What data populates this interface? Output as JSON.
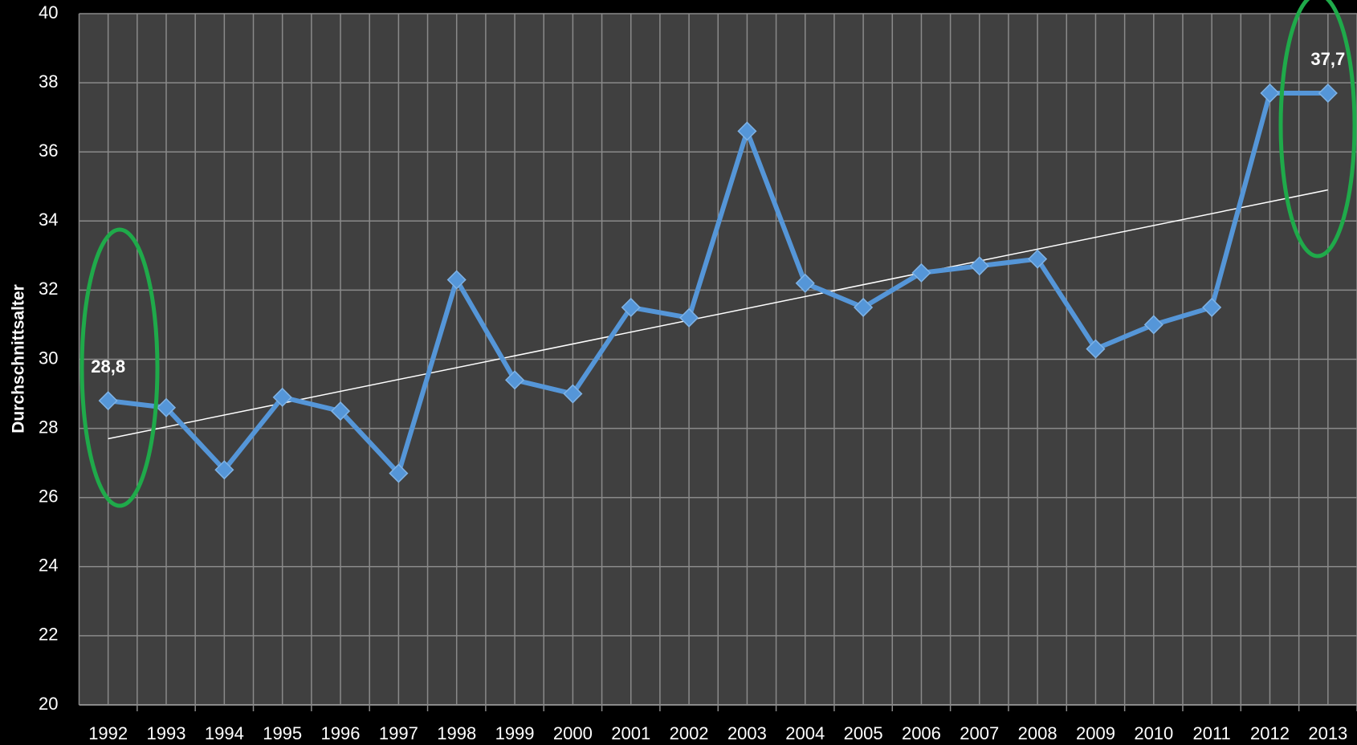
{
  "chart_data": {
    "type": "line",
    "y_label": "Durchschnittsalter",
    "categories": [
      "1992",
      "1993",
      "1994",
      "1995",
      "1996",
      "1997",
      "1998",
      "1999",
      "2000",
      "2001",
      "2002",
      "2003",
      "2004",
      "2005",
      "2006",
      "2007",
      "2008",
      "2009",
      "2010",
      "2011",
      "2012",
      "2013"
    ],
    "series": [
      {
        "color": "#5596d8",
        "values": [
          28.8,
          28.6,
          26.8,
          28.9,
          28.5,
          26.7,
          32.3,
          29.4,
          29.0,
          31.5,
          31.2,
          36.6,
          32.2,
          31.5,
          32.5,
          32.7,
          32.9,
          30.3,
          31.0,
          31.5,
          37.7,
          37.7
        ],
        "value_labels": [
          "28,8",
          null,
          null,
          null,
          null,
          null,
          null,
          null,
          null,
          null,
          null,
          null,
          null,
          null,
          null,
          null,
          null,
          null,
          null,
          null,
          null,
          "37,7"
        ]
      }
    ],
    "trendline": {
      "color": "#ffffff",
      "start": 27.7,
      "end": 34.9
    },
    "ylim": [
      20,
      40
    ],
    "yticks": [
      20,
      22,
      24,
      26,
      28,
      30,
      32,
      34,
      36,
      38,
      40
    ],
    "grid": true
  }
}
